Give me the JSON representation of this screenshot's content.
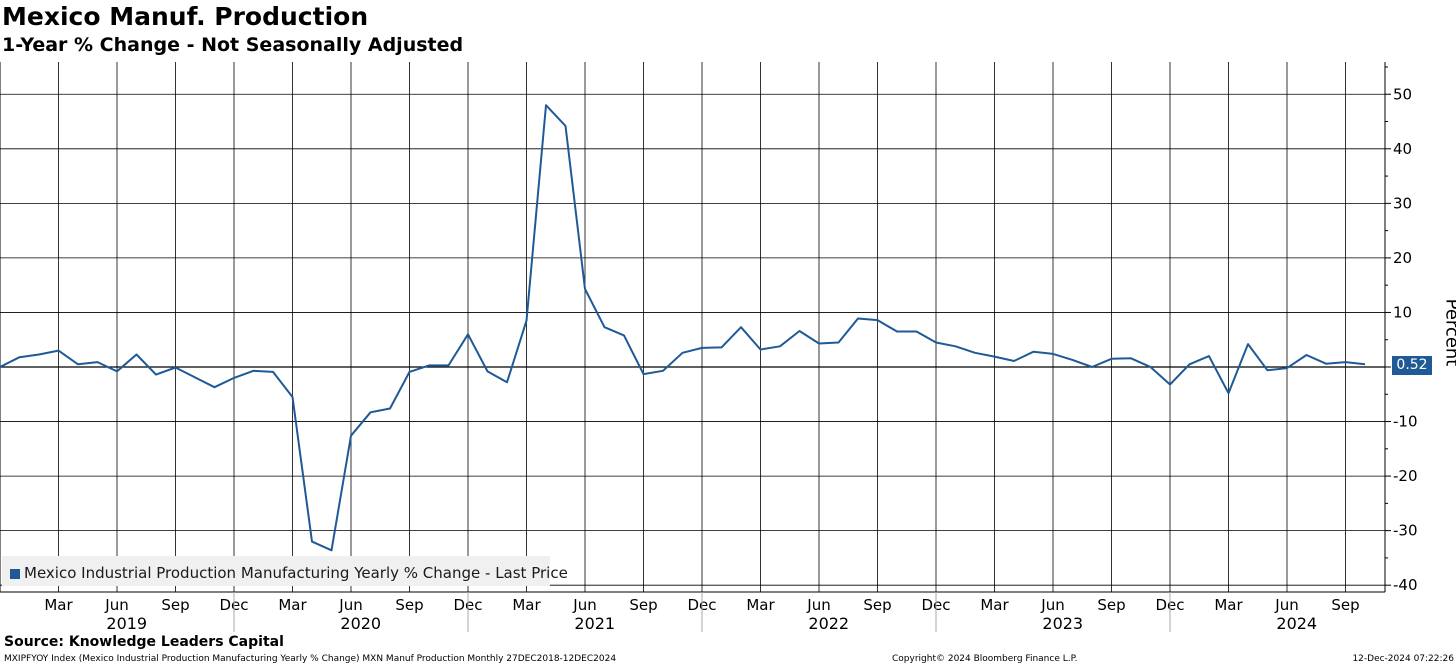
{
  "header": {
    "title": "Mexico Manuf. Production",
    "subtitle": "1-Year % Change - Not Seasonally Adjusted"
  },
  "legend": {
    "label": "Mexico Industrial Production Manufacturing Yearly % Change - Last Price"
  },
  "last_value_label": "0.52",
  "footer": {
    "source": "Source: Knowledge Leaders Capital",
    "ticker_info": "MXIPFYOY Index (Mexico Industrial Production Manufacturing Yearly % Change) MXN Manuf Production  Monthly 27DEC2018-12DEC2024",
    "copyright": "Copyright© 2024 Bloomberg Finance L.P.",
    "timestamp": "12-Dec-2024 07:22:26"
  },
  "colors": {
    "line": "#1f5a96",
    "grid": "#000000"
  },
  "chart_data": {
    "type": "line",
    "title": "Mexico Manuf. Production",
    "subtitle": "1-Year % Change - Not Seasonally Adjusted",
    "ylabel": "Percent",
    "ylim": [
      -42,
      55
    ],
    "yticks": [
      50,
      40,
      30,
      20,
      10,
      0,
      -10,
      -20,
      -30,
      -40
    ],
    "grid": true,
    "legend_position": "bottom-left",
    "x_month_labels": [
      "Mar",
      "Jun",
      "Sep",
      "Dec",
      "Mar",
      "Jun",
      "Sep",
      "Dec",
      "Mar",
      "Jun",
      "Sep",
      "Dec",
      "Mar",
      "Jun",
      "Sep",
      "Dec",
      "Mar",
      "Jun",
      "Sep",
      "Dec",
      "Mar",
      "Jun",
      "Sep"
    ],
    "x_year_labels": [
      "2019",
      "2020",
      "2021",
      "2022",
      "2023",
      "2024"
    ],
    "x_start": "2018-12",
    "x_end": "2024-10",
    "series": [
      {
        "name": "Mexico Industrial Production Manufacturing Yearly % Change - Last Price",
        "last_value": 0.52,
        "values": [
          0.0,
          1.8,
          2.3,
          3.0,
          0.5,
          0.9,
          -0.8,
          2.3,
          -1.4,
          -0.1,
          -1.9,
          -3.7,
          -2.0,
          -0.7,
          -0.9,
          -5.5,
          -32.0,
          -33.6,
          -12.6,
          -8.3,
          -7.6,
          -0.9,
          0.3,
          0.3,
          6.0,
          -0.8,
          -2.8,
          8.5,
          48.0,
          44.2,
          14.3,
          7.3,
          5.8,
          -1.3,
          -0.7,
          2.6,
          3.5,
          3.6,
          7.3,
          3.2,
          3.8,
          6.6,
          4.3,
          4.5,
          8.9,
          8.6,
          6.5,
          6.5,
          4.5,
          3.8,
          2.6,
          1.9,
          1.1,
          2.8,
          2.4,
          1.3,
          0.0,
          1.5,
          1.6,
          0.0,
          -3.2,
          0.5,
          2.0,
          -4.8,
          4.2,
          -0.6,
          -0.2,
          2.2,
          0.6,
          0.9,
          0.52
        ]
      }
    ]
  }
}
